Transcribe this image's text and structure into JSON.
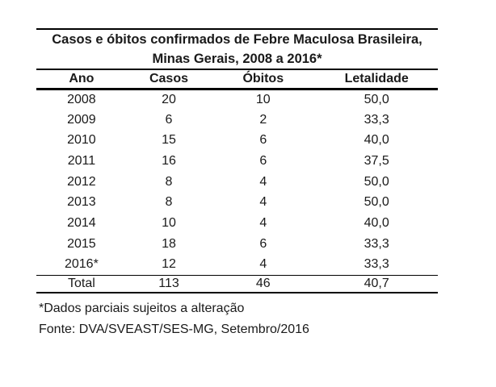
{
  "chart_data": {
    "type": "table",
    "title": "Casos e óbitos confirmados de Febre Maculosa Brasileira, Minas Gerais, 2008 a 2016*",
    "columns": [
      "Ano",
      "Casos",
      "Óbitos",
      "Letalidade"
    ],
    "rows": [
      [
        "2008",
        "20",
        "10",
        "50,0"
      ],
      [
        "2009",
        "6",
        "2",
        "33,3"
      ],
      [
        "2010",
        "15",
        "6",
        "40,0"
      ],
      [
        "2011",
        "16",
        "6",
        "37,5"
      ],
      [
        "2012",
        "8",
        "4",
        "50,0"
      ],
      [
        "2013",
        "8",
        "4",
        "50,0"
      ],
      [
        "2014",
        "10",
        "4",
        "40,0"
      ],
      [
        "2015",
        "18",
        "6",
        "33,3"
      ],
      [
        "2016*",
        "12",
        "4",
        "33,3"
      ]
    ],
    "total": [
      "Total",
      "113",
      "46",
      "40,7"
    ],
    "footnotes": [
      "*Dados parciais sujeitos a alteração",
      "Fonte: DVA/SVEAST/SES-MG, Setembro/2016"
    ]
  },
  "title": {
    "line1": "Casos e óbitos confirmados de Febre Maculosa Brasileira,",
    "line2": "Minas Gerais, 2008 a 2016*"
  },
  "table": {
    "columns": [
      "Ano",
      "Casos",
      "Óbitos",
      "Letalidade"
    ],
    "rows": [
      [
        "2008",
        "20",
        "10",
        "50,0"
      ],
      [
        "2009",
        "6",
        "2",
        "33,3"
      ],
      [
        "2010",
        "15",
        "6",
        "40,0"
      ],
      [
        "2011",
        "16",
        "6",
        "37,5"
      ],
      [
        "2012",
        "8",
        "4",
        "50,0"
      ],
      [
        "2013",
        "8",
        "4",
        "50,0"
      ],
      [
        "2014",
        "10",
        "4",
        "40,0"
      ],
      [
        "2015",
        "18",
        "6",
        "33,3"
      ],
      [
        "2016*",
        "12",
        "4",
        "33,3"
      ]
    ],
    "total_row": [
      "Total",
      "113",
      "46",
      "40,7"
    ]
  },
  "footnotes": {
    "note": "*Dados parciais sujeitos a alteração",
    "source": "Fonte: DVA/SVEAST/SES-MG, Setembro/2016"
  },
  "colors": {
    "text": "#1a1a1a",
    "rule": "#000000",
    "background": "#ffffff"
  }
}
